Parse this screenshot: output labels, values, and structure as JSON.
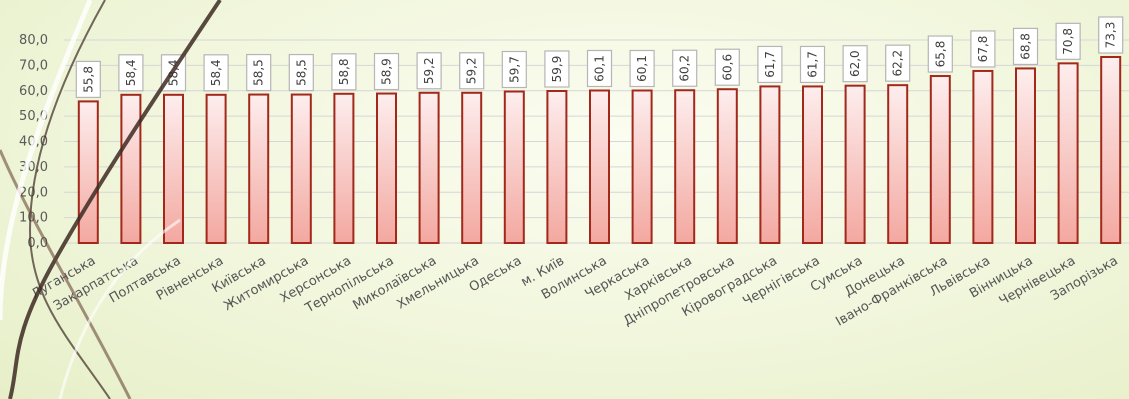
{
  "chart_data": {
    "type": "bar",
    "categories": [
      "Луганська",
      "Закарпатська",
      "Полтавська",
      "Рівненська",
      "Київська",
      "Житомирська",
      "Херсонська",
      "Тернопільська",
      "Миколаївська",
      "Хмельницька",
      "Одеська",
      "м. Київ",
      "Волинська",
      "Черкаська",
      "Харківська",
      "Дніпропетровська",
      "Кіровоградська",
      "Чернігівська",
      "Сумська",
      "Донецька",
      "Івано-Франківська",
      "Львівська",
      "Вінницька",
      "Чернівецька",
      "Запорізька"
    ],
    "values": [
      55.8,
      58.4,
      58.4,
      58.4,
      58.5,
      58.5,
      58.8,
      58.9,
      59.2,
      59.2,
      59.7,
      59.9,
      60.1,
      60.1,
      60.2,
      60.6,
      61.7,
      61.7,
      62.0,
      62.2,
      65.8,
      67.8,
      68.8,
      70.8,
      73.3
    ],
    "value_labels": [
      "55,8",
      "58,4",
      "58,4",
      "58,4",
      "58,5",
      "58,5",
      "58,8",
      "58,9",
      "59,2",
      "59,2",
      "59,7",
      "59,9",
      "60,1",
      "60,1",
      "60,2",
      "60,6",
      "61,7",
      "61,7",
      "62,0",
      "62,2",
      "65,8",
      "67,8",
      "68,8",
      "70,8",
      "73,3"
    ],
    "y_ticks": [
      0,
      10,
      20,
      30,
      40,
      50,
      60,
      70,
      80
    ],
    "y_tick_labels": [
      "0,0",
      "10,0",
      "20,0",
      "30,0",
      "40,0",
      "50,0",
      "60,0",
      "70,0",
      "80,0"
    ],
    "ylim": [
      0,
      80
    ],
    "grid": true,
    "title": "",
    "xlabel": "",
    "ylabel": "",
    "colors": {
      "bar_fill_top": "#fdeeee",
      "bar_fill_bottom": "#f3a8a0",
      "bar_stroke": "#a2281b",
      "grid": "#d6d6d6",
      "axis_text": "#5a5a5a",
      "label_border": "#b5b5b5",
      "label_text": "#404040"
    }
  }
}
